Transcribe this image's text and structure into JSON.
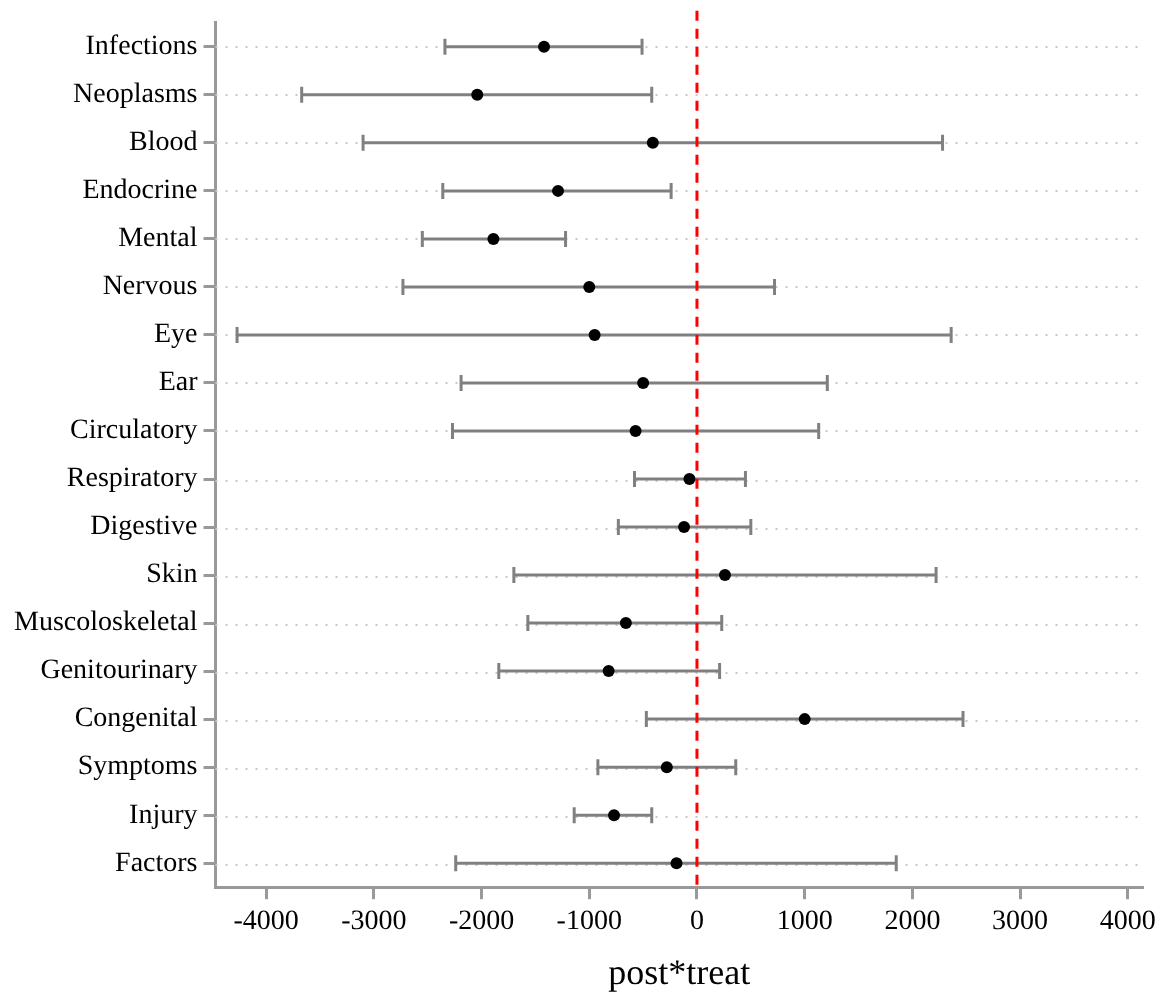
{
  "chart_data": {
    "type": "scatter",
    "orientation": "horizontal",
    "xlabel": "post*treat",
    "categories": [
      "Infections",
      "Neoplasms",
      "Blood",
      "Endocrine",
      "Mental",
      "Nervous",
      "Eye",
      "Ear",
      "Circulatory",
      "Respiratory",
      "Digestive",
      "Skin",
      "Muscoloskeletal",
      "Genitourinary",
      "Congenital",
      "Symptoms",
      "Injury",
      "Factors"
    ],
    "values": [
      -1420,
      -2040,
      -410,
      -1290,
      -1890,
      -1000,
      -950,
      -500,
      -570,
      -70,
      -120,
      260,
      -660,
      -820,
      1000,
      -280,
      -770,
      -190
    ],
    "errors": [
      [
        -2340,
        -510
      ],
      [
        -3670,
        -420
      ],
      [
        -3100,
        2280
      ],
      [
        -2360,
        -240
      ],
      [
        -2550,
        -1220
      ],
      [
        -2730,
        720
      ],
      [
        -4270,
        2360
      ],
      [
        -2190,
        1210
      ],
      [
        -2270,
        1130
      ],
      [
        -580,
        450
      ],
      [
        -730,
        500
      ],
      [
        -1700,
        2220
      ],
      [
        -1570,
        230
      ],
      [
        -1840,
        210
      ],
      [
        -470,
        2470
      ],
      [
        -920,
        360
      ],
      [
        -1140,
        -420
      ],
      [
        -2240,
        1850
      ]
    ],
    "color": "#000000",
    "xlim": [
      -4470,
      4140
    ],
    "xticks": [
      -4000,
      -3000,
      -2000,
      -1000,
      0,
      1000,
      2000,
      3000,
      4000
    ],
    "ref_lines": [
      {
        "axis": "x",
        "value": 0,
        "color": "#ff0000",
        "line_style": "dashed"
      }
    ],
    "grid": "y",
    "legend": false,
    "marker": "circle"
  }
}
